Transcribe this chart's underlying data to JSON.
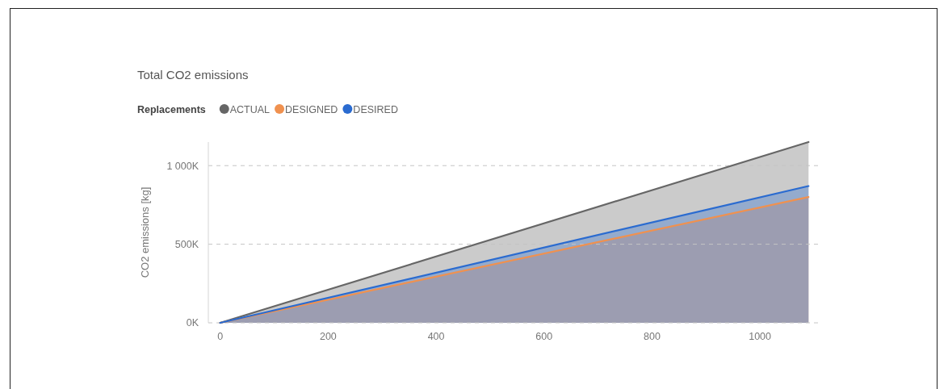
{
  "chart_data": {
    "type": "area",
    "title": "Total CO2 emissions",
    "ylabel": "CO2 emissions [kg]",
    "legend_title": "Replacements",
    "legend": "top left",
    "grid": "y",
    "x": [
      0,
      1090
    ],
    "xlim": [
      -22,
      1115
    ],
    "xticks": [
      0,
      200,
      400,
      600,
      800,
      1000
    ],
    "ylim": [
      0,
      1150000
    ],
    "yticks": [
      {
        "value": 0,
        "label": "0K"
      },
      {
        "value": 500000,
        "label": "500K"
      },
      {
        "value": 1000000,
        "label": "1 000K"
      }
    ],
    "series": [
      {
        "name": "ACTUAL",
        "color": "#666666",
        "values": [
          0,
          1150000
        ]
      },
      {
        "name": "DESIGNED",
        "color": "#f0914f",
        "values": [
          0,
          800000
        ]
      },
      {
        "name": "DESIRED",
        "color": "#2a6bd0",
        "values": [
          0,
          870000
        ]
      }
    ]
  }
}
